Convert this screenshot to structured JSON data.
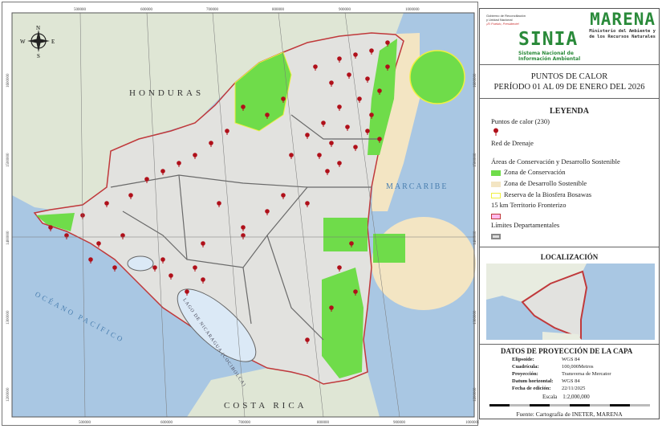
{
  "map": {
    "labels": {
      "honduras": "HONDURAS",
      "costa_rica": "COSTA RICA",
      "marcaribe": "MARCARIBE",
      "oceano": "OCÉANO PACÍFICO",
      "lago": "LAGO DE NICARAGUA (COCIBOLCA)"
    },
    "compass": {
      "n": "N",
      "s": "S",
      "e": "E",
      "w": "W"
    },
    "x_ticks_top": [
      "500000",
      "600000",
      "700000",
      "800000",
      "900000",
      "1000000"
    ],
    "x_ticks_bottom": [
      "500000",
      "600000",
      "700000",
      "800000",
      "900000",
      "1000000"
    ],
    "y_ticks": [
      "1600000",
      "1500000",
      "1400000",
      "1300000",
      "1200000"
    ],
    "colors": {
      "land": "#e2e2df",
      "water": "#a9c7e3",
      "conservation": "#6fdc4a",
      "sustainable": "#f3e5c3",
      "bosawas": "#f0f040",
      "hotspot": "#b0101a",
      "border": "#c0393b",
      "dept": "#6a6a6a"
    }
  },
  "header": {
    "gov_line1": "Gobierno de Reconciliación",
    "gov_line2": "y Unidad Nacional",
    "gov_motto": "¡El Pueblo, Presidente!",
    "marena": "MARENA",
    "marena_sub1": "Ministerio del Ambiente y",
    "marena_sub2": "de los Recursos Naturales",
    "sinia": "SINIA",
    "sinia_sub1": "Sistema Nacional de",
    "sinia_sub2": "Información Ambiental"
  },
  "title": {
    "line1": "PUNTOS DE CALOR",
    "line2": "PERÍODO 01 AL 09 DE ENERO DEL 2026"
  },
  "legend": {
    "heading": "LEYENDA",
    "hotspots": "Puntos de calor (230)",
    "drainage": "Red de Drenaje",
    "areas": "Áreas de Conservación y Desarrollo Sostenible",
    "conservation": "Zona de Conservación",
    "sustainable": "Zona de Desarrollo Sostenible",
    "bosawas": "Reserva de la Biosfera Bosawas",
    "border15": "15 km Territorio Fronterizo",
    "dept": "Límites Departamentales"
  },
  "location": {
    "heading": "LOCALIZACIÓN"
  },
  "projection": {
    "heading": "DATOS DE PROYECCIÓN DE LA CAPA",
    "rows": [
      {
        "k": "Elipsoide:",
        "v": "WGS 84"
      },
      {
        "k": "Cuadrícula:",
        "v": "100,000Metros"
      },
      {
        "k": "Proyección:",
        "v": "Transversa de Mercator"
      },
      {
        "k": "Datum horizontal:",
        "v": "WGS 84"
      },
      {
        "k": "Fecha de edición:",
        "v": "22/11/2025"
      }
    ],
    "scale_label": "Escala",
    "scale": "1:2,000,000",
    "source": "Fuente: Cartografía de INETER, MARENA"
  }
}
